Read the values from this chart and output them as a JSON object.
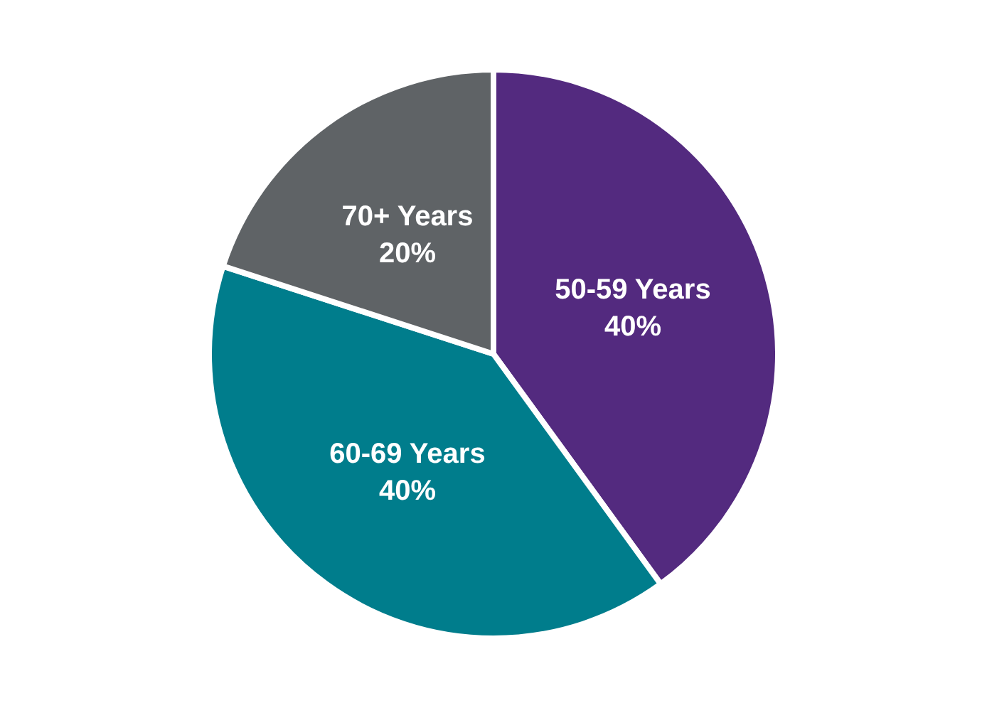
{
  "chart_data": {
    "type": "pie",
    "categories": [
      "50-59 Years",
      "60-69 Years",
      "70+ Years"
    ],
    "values": [
      40,
      40,
      20
    ],
    "value_labels": [
      "40%",
      "40%",
      "20%"
    ],
    "colors": [
      "#532a7f",
      "#007d8c",
      "#5f6366"
    ],
    "legend": false
  }
}
